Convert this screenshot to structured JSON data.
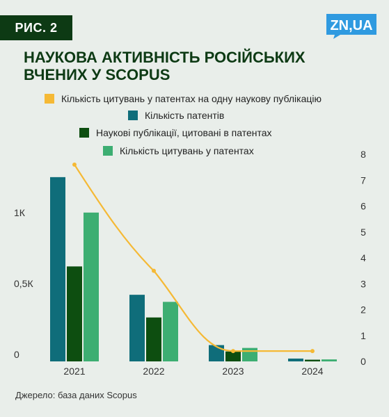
{
  "figure_label": "РИС. 2",
  "brand_logo": {
    "text": "ZN,UA",
    "icon": "speech-bubble-logo",
    "color": "#2f9ae0"
  },
  "title": [
    "НАУКОВА АКТИВНІСТЬ РОСІЙСЬКИХ",
    "ВЧЕНИХ У SCOPUS"
  ],
  "source": "Джерело: база даних Scopus",
  "colors": {
    "background": "#e9eeea",
    "dark_green": "#0d3a14",
    "series": [
      "#0f6d7a",
      "#0d4e10",
      "#3dae72",
      "#f5b935"
    ]
  },
  "chart_data": {
    "type": "bar",
    "categories": [
      "2021",
      "2022",
      "2023",
      "2024"
    ],
    "series": [
      {
        "name": "Кількість патентів",
        "axis": "left",
        "values": [
          1300,
          470,
          115,
          20
        ]
      },
      {
        "name": "Наукові публікації, цитовані в патентах",
        "axis": "left",
        "values": [
          670,
          310,
          70,
          12
        ]
      },
      {
        "name": "Кількість цитувань у патентах",
        "axis": "left",
        "values": [
          1050,
          420,
          95,
          14
        ]
      },
      {
        "name": "Кількість цитувань у патентах на одну наукову публікацію",
        "axis": "right",
        "type": "line",
        "values": [
          7.6,
          3.5,
          0.4,
          0.4
        ]
      }
    ],
    "legend_order": [
      "Кількість цитувань у патентах на одну наукову публікацію",
      "Кількість патентів",
      "Наукові публікації, цитовані в патентах",
      "Кількість цитувань у патентах"
    ],
    "left_axis": {
      "ylim": [
        0,
        1520
      ],
      "ticks": [
        0,
        500,
        1000
      ],
      "tick_labels": [
        "0",
        "0,5К",
        "1К"
      ]
    },
    "right_axis": {
      "ylim": [
        0,
        8.4
      ],
      "ticks": [
        0,
        1,
        2,
        3,
        4,
        5,
        6,
        7,
        8
      ],
      "tick_labels": [
        "0",
        "1",
        "2",
        "3",
        "4",
        "5",
        "6",
        "7",
        "8"
      ]
    },
    "grid": false,
    "legend_position": "top"
  }
}
